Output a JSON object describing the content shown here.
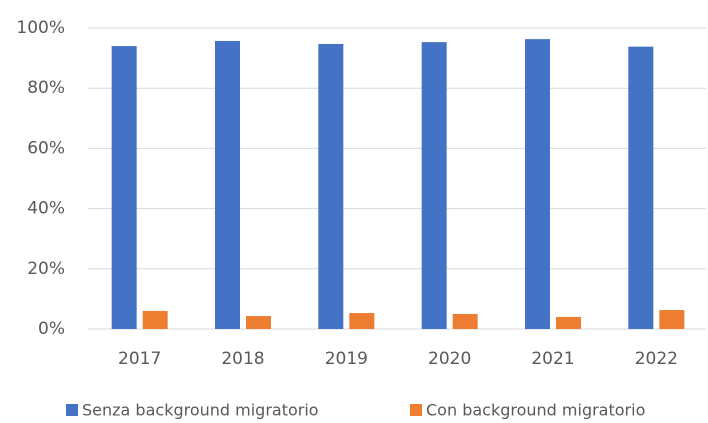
{
  "chart_data": {
    "type": "bar",
    "categories": [
      "2017",
      "2018",
      "2019",
      "2020",
      "2021",
      "2022"
    ],
    "series": [
      {
        "name": "Senza background migratorio",
        "color": "#4472c4",
        "values": [
          94.0,
          95.7,
          94.7,
          95.3,
          96.3,
          93.8
        ]
      },
      {
        "name": "Con background migratorio",
        "color": "#ed7d31",
        "values": [
          6.0,
          4.3,
          5.3,
          5.0,
          4.0,
          6.3
        ]
      }
    ],
    "ylim": [
      0,
      100
    ],
    "yticks": [
      {
        "value": 0,
        "label": "0%"
      },
      {
        "value": 20,
        "label": "20%"
      },
      {
        "value": 40,
        "label": "40%"
      },
      {
        "value": 60,
        "label": "60%"
      },
      {
        "value": 80,
        "label": "80%"
      },
      {
        "value": 100,
        "label": "100%"
      }
    ],
    "grid": true,
    "legend": "bottom"
  }
}
